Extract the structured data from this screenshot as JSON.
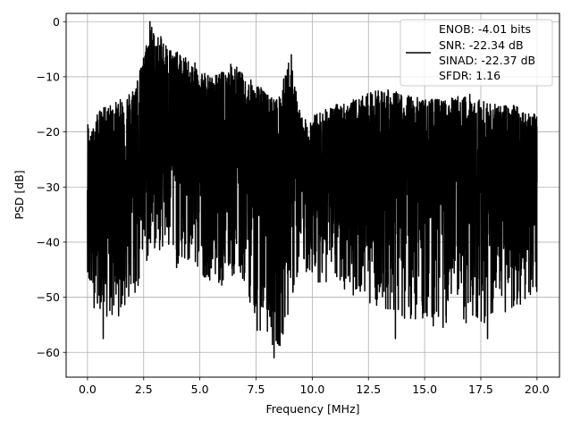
{
  "chart_data": {
    "type": "line",
    "xlabel": "Frequency [MHz]",
    "ylabel": "PSD [dB]",
    "xlim": [
      -0.95,
      21.0
    ],
    "ylim": [
      -64.5,
      1.5
    ],
    "x_ticks": [
      0.0,
      2.5,
      5.0,
      7.5,
      10.0,
      12.5,
      15.0,
      17.5,
      20.0
    ],
    "x_tick_labels": [
      "0.0",
      "2.5",
      "5.0",
      "7.5",
      "10.0",
      "12.5",
      "15.0",
      "17.5",
      "20.0"
    ],
    "y_ticks": [
      0,
      -10,
      -20,
      -30,
      -40,
      -50,
      -60
    ],
    "y_tick_labels": [
      "0",
      "−10",
      "−20",
      "−30",
      "−40",
      "−50",
      "−60"
    ],
    "grid": true,
    "legend_position": "top-right",
    "series": [
      {
        "name_lines": [
          "ENOB: -4.01 bits",
          "SNR: -22.34 dB",
          "SINAD: -22.37 dB",
          "SFDR: 1.16"
        ],
        "color": "#000000",
        "envelope": {
          "x": [
            0.0,
            0.05,
            0.1,
            0.5,
            1.0,
            1.5,
            2.0,
            2.4,
            2.6,
            2.8,
            3.0,
            3.4,
            3.8,
            4.2,
            4.6,
            5.0,
            5.5,
            6.0,
            6.5,
            7.0,
            7.5,
            8.0,
            8.5,
            9.0,
            9.3,
            9.6,
            10.0,
            11.0,
            12.0,
            13.0,
            14.0,
            15.0,
            16.0,
            17.0,
            18.0,
            19.0,
            20.0
          ],
          "upper": [
            -18,
            -18,
            -21,
            -16,
            -15,
            -14,
            -12,
            -8,
            -4,
            0,
            -2,
            -3,
            -5,
            -6,
            -7,
            -8,
            -10,
            -9,
            -7,
            -10,
            -11,
            -13,
            -14,
            -6,
            -13,
            -18,
            -17,
            -15,
            -14,
            -12,
            -13,
            -14,
            -14,
            -13,
            -15,
            -15,
            -17
          ],
          "lower": [
            -45,
            -50,
            -52,
            -52,
            -55,
            -53,
            -52,
            -48,
            -45,
            -44,
            -42,
            -42,
            -45,
            -45,
            -45,
            -46,
            -47,
            -48,
            -47,
            -48,
            -55,
            -58,
            -60,
            -52,
            -48,
            -45,
            -47,
            -48,
            -50,
            -52,
            -54,
            -55,
            -56,
            -55,
            -55,
            -52,
            -50
          ],
          "mean": [
            -28,
            -30,
            -30,
            -29,
            -29,
            -28,
            -26,
            -22,
            -20,
            -20,
            -20,
            -21,
            -22,
            -23,
            -23,
            -24,
            -25,
            -25,
            -25,
            -25,
            -26,
            -27,
            -28,
            -26,
            -27,
            -30,
            -28,
            -27,
            -27,
            -27,
            -27,
            -28,
            -28,
            -28,
            -28,
            -28,
            -28
          ]
        },
        "notable_points": [
          {
            "x": 2.78,
            "y": 0.0
          },
          {
            "x": 8.3,
            "y": -61.0
          },
          {
            "x": 7.55,
            "y": -56.0
          },
          {
            "x": 0.7,
            "y": -57.5
          },
          {
            "x": 13.7,
            "y": -57.5
          },
          {
            "x": 17.8,
            "y": -57.5
          },
          {
            "x": 9.07,
            "y": -6.0
          }
        ]
      }
    ]
  }
}
